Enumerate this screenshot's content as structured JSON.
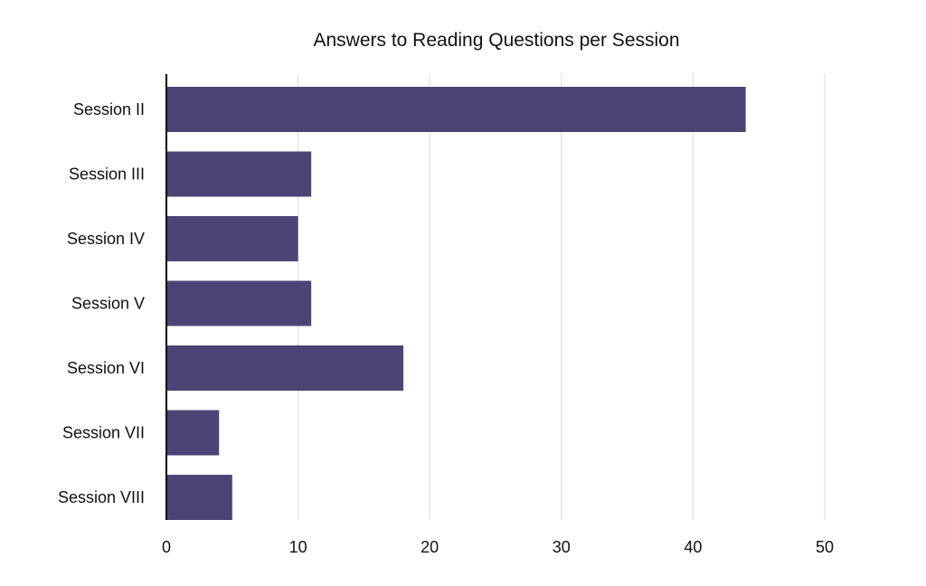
{
  "chart_data": {
    "type": "bar",
    "orientation": "horizontal",
    "title": "Answers to Reading Questions per Session",
    "xlabel": "",
    "ylabel": "",
    "categories": [
      "Session II",
      "Session III",
      "Session IV",
      "Session V",
      "Session VI",
      "Session VII",
      "Session VIII"
    ],
    "values": [
      44,
      11,
      10,
      11,
      18,
      4,
      5
    ],
    "xlim": [
      0,
      50
    ],
    "xticks": [
      0,
      10,
      20,
      30,
      40,
      50
    ],
    "grid": true,
    "legend": "none",
    "bar_color": "#4b4474"
  }
}
